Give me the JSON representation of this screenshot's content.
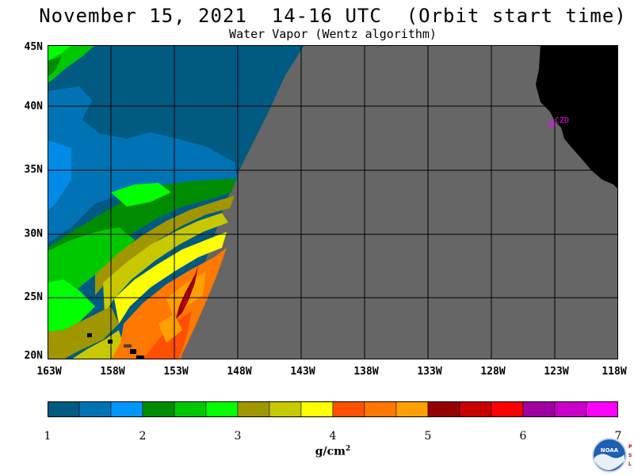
{
  "title": "November 15, 2021  14-16 UTC  (Orbit start time)",
  "subtitle": "Water Vapor (Wentz algorithm)",
  "map": {
    "lat_labels": [
      "45N",
      "40N",
      "35N",
      "30N",
      "25N",
      "20N"
    ],
    "lon_labels": [
      "163W",
      "158W",
      "153W",
      "148W",
      "143W",
      "138W",
      "133W",
      "128W",
      "123W",
      "118W"
    ],
    "station_label": "CZD",
    "no_data_color": "#666666",
    "land_color": "#000000",
    "station_color": "#ff00ff"
  },
  "colorbar": {
    "colors": [
      "#005a82",
      "#0073b4",
      "#0096ff",
      "#008c00",
      "#00c800",
      "#00ff00",
      "#a09600",
      "#c8c800",
      "#ffff00",
      "#ff5000",
      "#ff7800",
      "#ffa000",
      "#960000",
      "#c80000",
      "#ff0000",
      "#a000a0",
      "#c800c8",
      "#ff00ff"
    ],
    "ticks": [
      "1",
      "2",
      "3",
      "4",
      "5",
      "6",
      "7"
    ],
    "units_base": "g/cm",
    "units_exp": "2"
  },
  "logo": {
    "text": "NOAA",
    "side_letters": [
      "P",
      "S",
      "L"
    ]
  }
}
